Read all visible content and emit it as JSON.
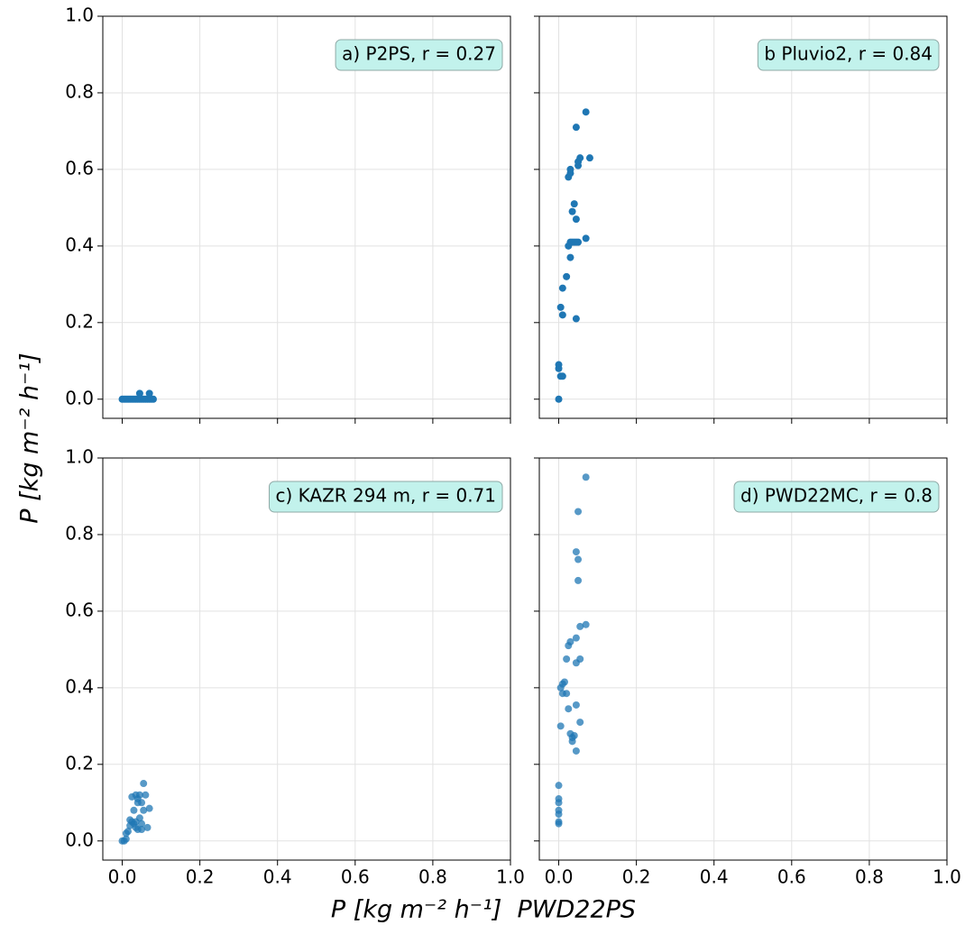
{
  "xlabel": "P [kg m⁻² h⁻¹]  PWD22PS",
  "ylabel": "P [kg m⁻² h⁻¹]",
  "chart_data": [
    {
      "type": "scatter",
      "annotation": "a) P2PS, r = 0.27",
      "color": "#1f77b4",
      "alpha": 1,
      "x": [
        0,
        0.005,
        0.01,
        0.015,
        0.02,
        0.025,
        0.03,
        0.035,
        0.04,
        0.045,
        0.05,
        0.055,
        0.06,
        0.065,
        0.07,
        0.075,
        0.08,
        0.045,
        0.07
      ],
      "values": [
        0,
        0,
        0,
        0,
        0,
        0,
        0,
        0,
        0,
        0,
        0,
        0,
        0,
        0,
        0,
        0,
        0,
        0.015,
        0.015
      ],
      "xlim": [
        -0.05,
        1.0
      ],
      "ylim": [
        -0.05,
        1.0
      ],
      "xticks": [
        0,
        0.2,
        0.4,
        0.6,
        0.8,
        1
      ],
      "yticks": [
        {
          "value": 0,
          "label": "0.0"
        },
        {
          "value": 0.2,
          "label": "0.2"
        },
        {
          "value": 0.4,
          "label": "0.4"
        },
        {
          "value": 0.6,
          "label": "0.6"
        },
        {
          "value": 0.8,
          "label": "0.8"
        },
        {
          "value": 1,
          "label": "1.0"
        }
      ],
      "grid": true
    },
    {
      "type": "scatter",
      "annotation": "b Pluvio2, r = 0.84",
      "color": "#1f77b4",
      "alpha": 1,
      "x": [
        0,
        0,
        0,
        0.01,
        0.005,
        0.005,
        0.01,
        0.01,
        0.02,
        0.03,
        0.045,
        0.025,
        0.03,
        0.035,
        0.04,
        0.045,
        0.05,
        0.07,
        0.045,
        0.035,
        0.04,
        0.025,
        0.03,
        0.03,
        0.05,
        0.05,
        0.055,
        0.08,
        0.045,
        0.07
      ],
      "values": [
        0,
        0.09,
        0.08,
        0.06,
        0.06,
        0.24,
        0.22,
        0.29,
        0.32,
        0.37,
        0.21,
        0.4,
        0.41,
        0.41,
        0.41,
        0.41,
        0.41,
        0.42,
        0.47,
        0.49,
        0.51,
        0.58,
        0.59,
        0.6,
        0.61,
        0.62,
        0.63,
        0.63,
        0.71,
        0.75
      ],
      "xlim": [
        -0.05,
        1.0
      ],
      "ylim": [
        -0.05,
        1.0
      ],
      "xticks": [
        0,
        0.2,
        0.4,
        0.6,
        0.8,
        1
      ],
      "yticks": [
        0,
        0.2,
        0.4,
        0.6,
        0.8,
        1
      ],
      "grid": true
    },
    {
      "type": "scatter",
      "annotation": "c) KAZR 294 m, r = 0.71",
      "color": "#1f77b4",
      "alpha": 0.75,
      "x": [
        0,
        0.005,
        0.01,
        0.01,
        0.015,
        0.02,
        0.02,
        0.025,
        0.03,
        0.03,
        0.035,
        0.035,
        0.04,
        0.04,
        0.045,
        0.045,
        0.05,
        0.05,
        0.05,
        0.055,
        0.055,
        0.06,
        0.065,
        0.07,
        0.025,
        0.04,
        0.035
      ],
      "values": [
        0,
        0,
        0.005,
        0.02,
        0.025,
        0.04,
        0.055,
        0.05,
        0.045,
        0.08,
        0.12,
        0.035,
        0.1,
        0.11,
        0.06,
        0.12,
        0.03,
        0.045,
        0.1,
        0.15,
        0.08,
        0.12,
        0.035,
        0.085,
        0.115,
        0.03,
        0.05
      ],
      "xlim": [
        -0.05,
        1.0
      ],
      "ylim": [
        -0.05,
        1.0
      ],
      "xticks": [
        {
          "value": 0,
          "label": "0.0"
        },
        {
          "value": 0.2,
          "label": "0.2"
        },
        {
          "value": 0.4,
          "label": "0.4"
        },
        {
          "value": 0.6,
          "label": "0.6"
        },
        {
          "value": 0.8,
          "label": "0.8"
        },
        {
          "value": 1,
          "label": "1.0"
        }
      ],
      "yticks": [
        {
          "value": 0,
          "label": "0.0"
        },
        {
          "value": 0.2,
          "label": "0.2"
        },
        {
          "value": 0.4,
          "label": "0.4"
        },
        {
          "value": 0.6,
          "label": "0.6"
        },
        {
          "value": 0.8,
          "label": "0.8"
        },
        {
          "value": 1,
          "label": "1.0"
        }
      ],
      "grid": true
    },
    {
      "type": "scatter",
      "annotation": "d) PWD22MC, r = 0.8",
      "color": "#1f77b4",
      "alpha": 0.75,
      "x": [
        0,
        0,
        0,
        0,
        0,
        0,
        0,
        0.005,
        0.01,
        0.005,
        0.01,
        0.015,
        0.02,
        0.02,
        0.025,
        0.03,
        0.025,
        0.03,
        0.035,
        0.035,
        0.04,
        0.045,
        0.045,
        0.045,
        0.045,
        0.055,
        0.055,
        0.07,
        0.055,
        0.05,
        0.05,
        0.045,
        0.05,
        0.07
      ],
      "values": [
        0.045,
        0.05,
        0.07,
        0.08,
        0.1,
        0.11,
        0.145,
        0.3,
        0.385,
        0.4,
        0.41,
        0.415,
        0.385,
        0.475,
        0.51,
        0.52,
        0.345,
        0.28,
        0.27,
        0.26,
        0.275,
        0.235,
        0.355,
        0.53,
        0.465,
        0.475,
        0.56,
        0.565,
        0.31,
        0.68,
        0.735,
        0.755,
        0.86,
        0.95
      ],
      "xlim": [
        -0.05,
        1.0
      ],
      "ylim": [
        -0.05,
        1.0
      ],
      "xticks": [
        {
          "value": 0,
          "label": "0.0"
        },
        {
          "value": 0.2,
          "label": "0.2"
        },
        {
          "value": 0.4,
          "label": "0.4"
        },
        {
          "value": 0.6,
          "label": "0.6"
        },
        {
          "value": 0.8,
          "label": "0.8"
        },
        {
          "value": 1,
          "label": "1.0"
        }
      ],
      "yticks": [
        0,
        0.2,
        0.4,
        0.6,
        0.8,
        1
      ],
      "grid": true
    }
  ]
}
